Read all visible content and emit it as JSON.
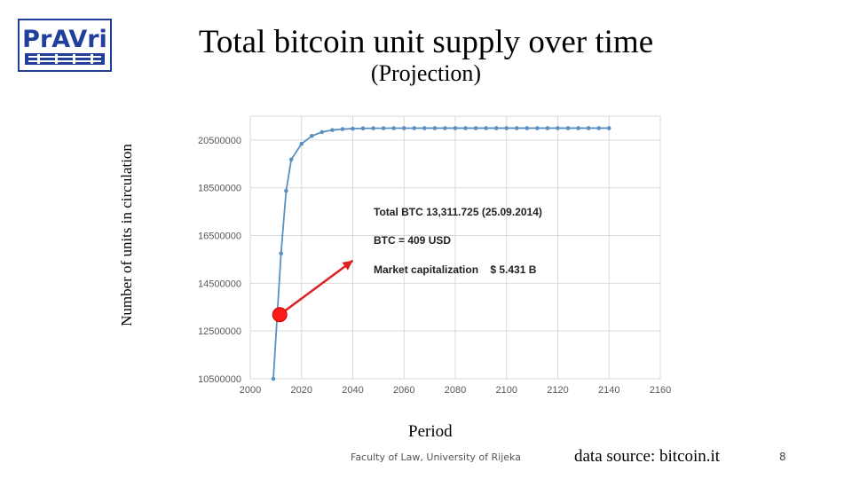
{
  "slide": {
    "title": "Total bitcoin unit supply over time",
    "subtitle": "(Projection)",
    "footer": "Faculty of Law, University of Rijeka",
    "source": "data source: bitcoin.it",
    "page_number": "8",
    "logo_text": "PrAVri"
  },
  "chart_data": {
    "type": "line",
    "xlabel": "Period",
    "ylabel": "Number of units in circulation",
    "xlim": [
      2000,
      2160
    ],
    "ylim": [
      10500000,
      21500000
    ],
    "x_ticks": [
      "2000",
      "2020",
      "2040",
      "2060",
      "2080",
      "2100",
      "2120",
      "2140",
      "2160"
    ],
    "y_ticks": [
      "10500000",
      "12500000",
      "14500000",
      "16500000",
      "18500000",
      "20500000"
    ],
    "grid": true,
    "series": [
      {
        "x": [
          2009,
          2012,
          2014,
          2016,
          2020,
          2024,
          2028,
          2032,
          2036,
          2040,
          2044,
          2048,
          2052,
          2056,
          2060,
          2064,
          2068,
          2072,
          2076,
          2080,
          2084,
          2088,
          2092,
          2096,
          2100,
          2104,
          2108,
          2112,
          2116,
          2120,
          2124,
          2128,
          2132,
          2136,
          2140
        ],
        "y": [
          10500000,
          15750000,
          18375000,
          19687500,
          20343750,
          20671875,
          20835938,
          20917969,
          20958984,
          20979492,
          20989746,
          20994873,
          20997437,
          20998718,
          20999359,
          20999680,
          20999840,
          20999920,
          20999960,
          20999980,
          20999990,
          20999995,
          20999998,
          20999999,
          21000000,
          21000000,
          21000000,
          21000000,
          21000000,
          21000000,
          21000000,
          21000000,
          21000000,
          21000000,
          21000000
        ]
      }
    ],
    "annotation": {
      "lines": [
        "Total BTC 13,311.725 (25.09.2014)",
        "BTC = 409 USD",
        "Market capitalization    $ 5.431 B"
      ],
      "marker": {
        "x": 2011.5,
        "y": 13185000
      },
      "arrow_to": {
        "x": 2040,
        "y": 15450000
      }
    },
    "colors": {
      "line": "#5b8fc0",
      "marker": "#ff1a1a",
      "arrow": "#e02020",
      "grid": "#d9d9d9"
    }
  }
}
